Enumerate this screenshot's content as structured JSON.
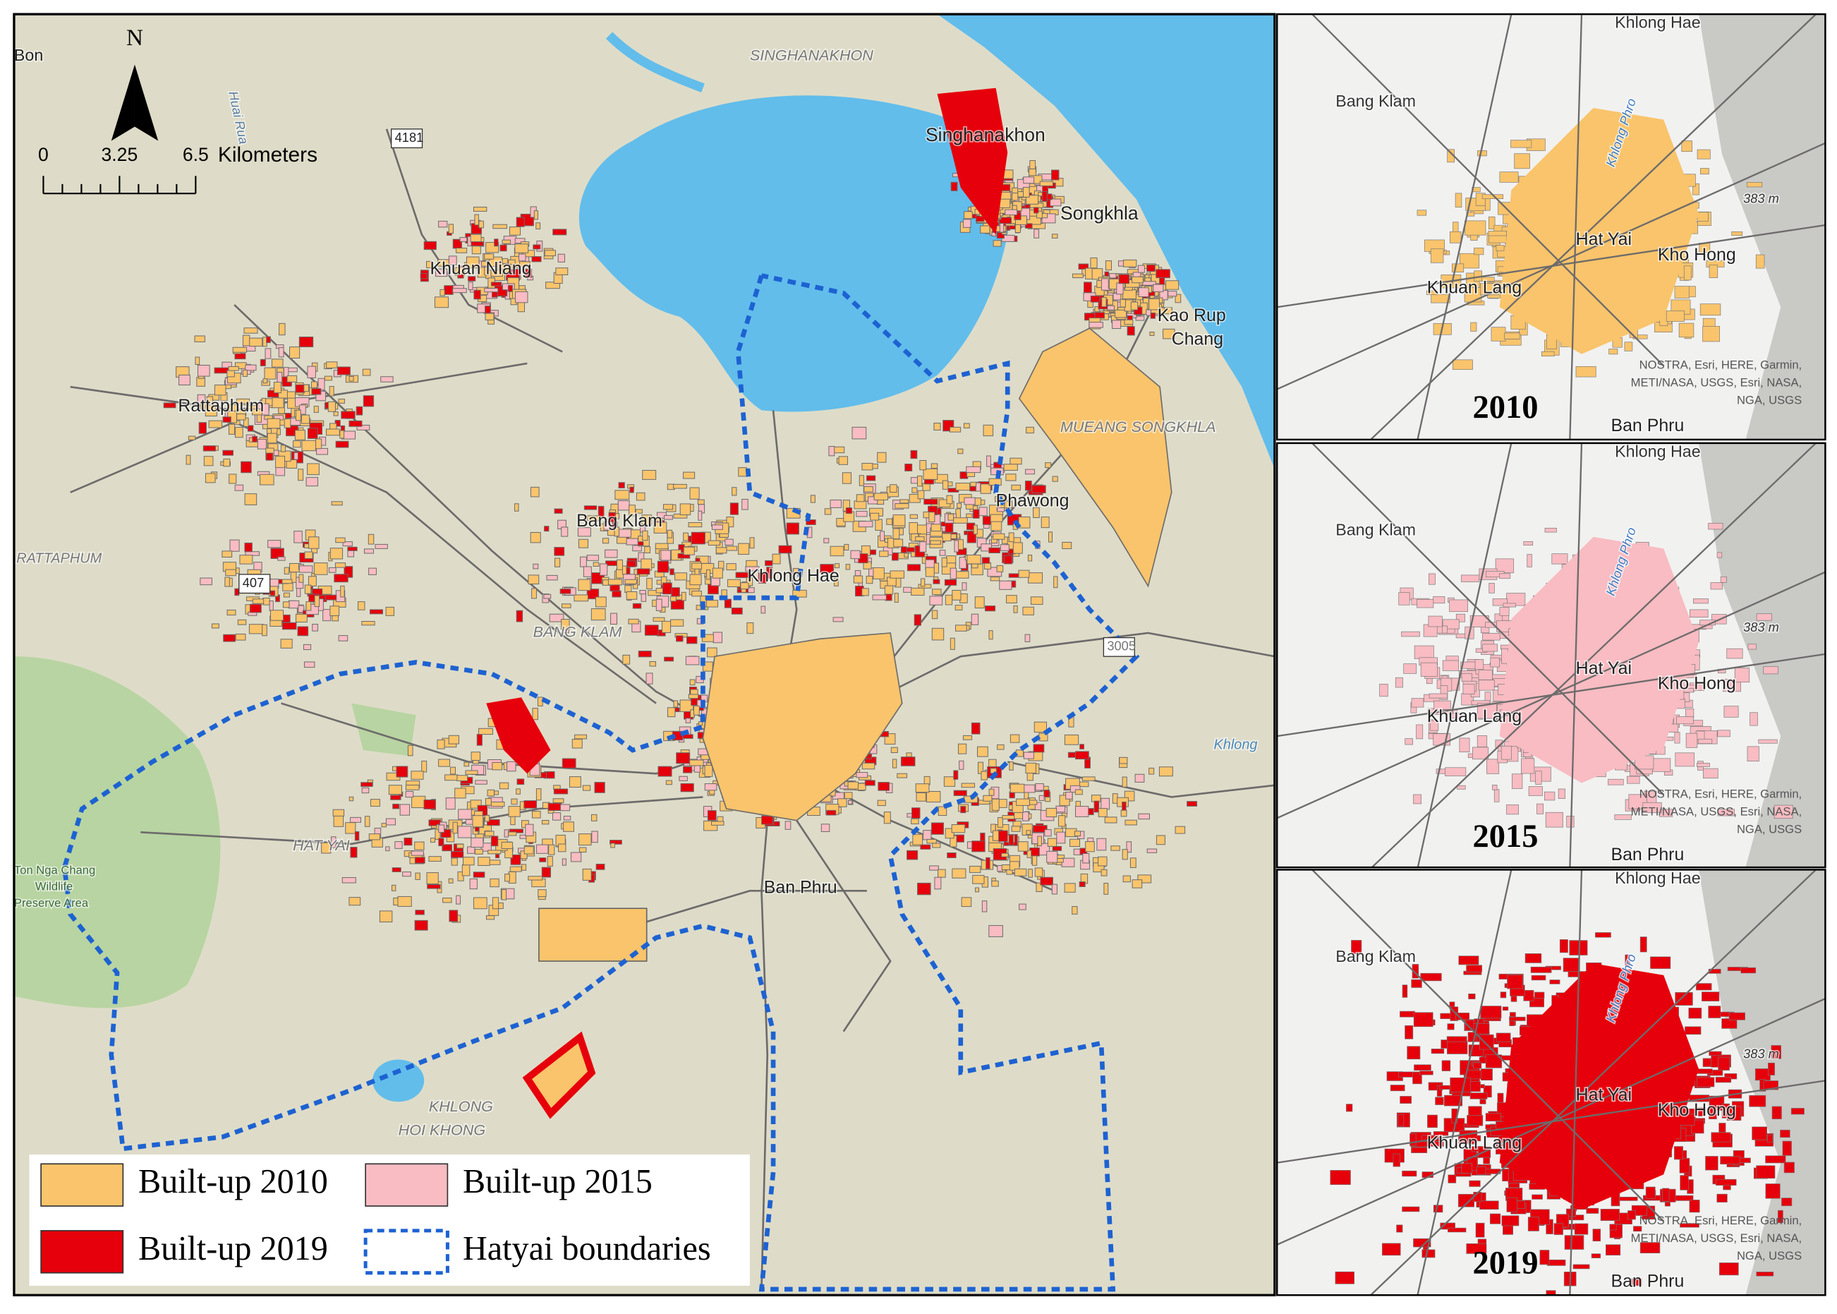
{
  "north_arrow": "N",
  "scale_bar": {
    "ticks": [
      "0",
      "3.25",
      "6.5"
    ],
    "unit": "Kilometers"
  },
  "main_map": {
    "labels": [
      "Bon",
      "Huai Rua",
      "SINGHANAKHON",
      "Singhanakhon",
      "Songkhla",
      "Khuan Niang",
      "Kao Rup",
      "Chang",
      "Rattaphum",
      "MUEANG SONGKHLA",
      "Phawong",
      "Bang Klam",
      "Khlong Hae",
      "RATTAPHUM",
      "BANG KLAM",
      "Ban Phru",
      "Khlong",
      "Ton Nga Chang",
      "Wildlife",
      "Preserve Area",
      "KHLONG",
      "HOI KHONG",
      "HAT YAI",
      "4181",
      "3005",
      "407"
    ]
  },
  "legend": [
    {
      "label": "Built-up 2010",
      "color": "#f9c46b"
    },
    {
      "label": "Built-up 2015",
      "color": "#f8bcc2"
    },
    {
      "label": "Built-up 2019",
      "color": "#e6000b"
    },
    {
      "label": "Hatyai boundaries",
      "color": "#1d62d2",
      "style": "dashed"
    }
  ],
  "insets": [
    {
      "year": "2010",
      "color": "#f9c46b",
      "labels": [
        "Khlong Hae",
        "Bang Klam",
        "Khlong Phro",
        "383 m",
        "Hat Yai",
        "Kho Hong",
        "Khuan Lang",
        "Ban Phru"
      ],
      "attribution": [
        "NOSTRA, Esri, HERE, Garmin,",
        "METI/NASA, USGS, Esri, NASA,",
        "NGA, USGS"
      ]
    },
    {
      "year": "2015",
      "color": "#f8bcc2",
      "labels": [
        "Khlong Hae",
        "Bang Klam",
        "Khlong Phro",
        "383 m",
        "Hat Yai",
        "Kho Hong",
        "Khuan Lang",
        "Ban Phru"
      ],
      "attribution": [
        "NOSTRA, Esri, HERE, Garmin,",
        "METI/NASA, USGS, Esri, NASA,",
        "NGA, USGS"
      ]
    },
    {
      "year": "2019",
      "color": "#e6000b",
      "labels": [
        "Khlong Hae",
        "Bang Klam",
        "Khlong Phro",
        "383 m",
        "Hat Yai",
        "Kho Hong",
        "Khuan Lang",
        "Ban Phru"
      ],
      "attribution": [
        "NOSTRA, Esri, HERE, Garmin,",
        "METI/NASA, USGS, Esri, NASA,",
        "NGA, USGS"
      ]
    }
  ]
}
